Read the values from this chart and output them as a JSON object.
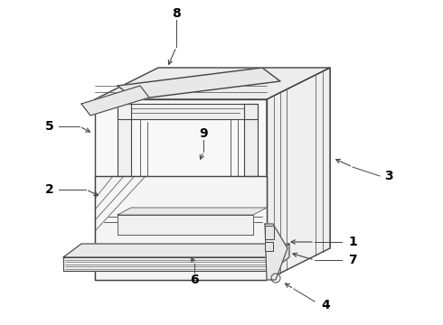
{
  "bg_color": "#ffffff",
  "line_color": "#444444",
  "label_color": "#000000",
  "fig_width": 4.9,
  "fig_height": 3.6,
  "dpi": 100,
  "label_fontsize": 10
}
